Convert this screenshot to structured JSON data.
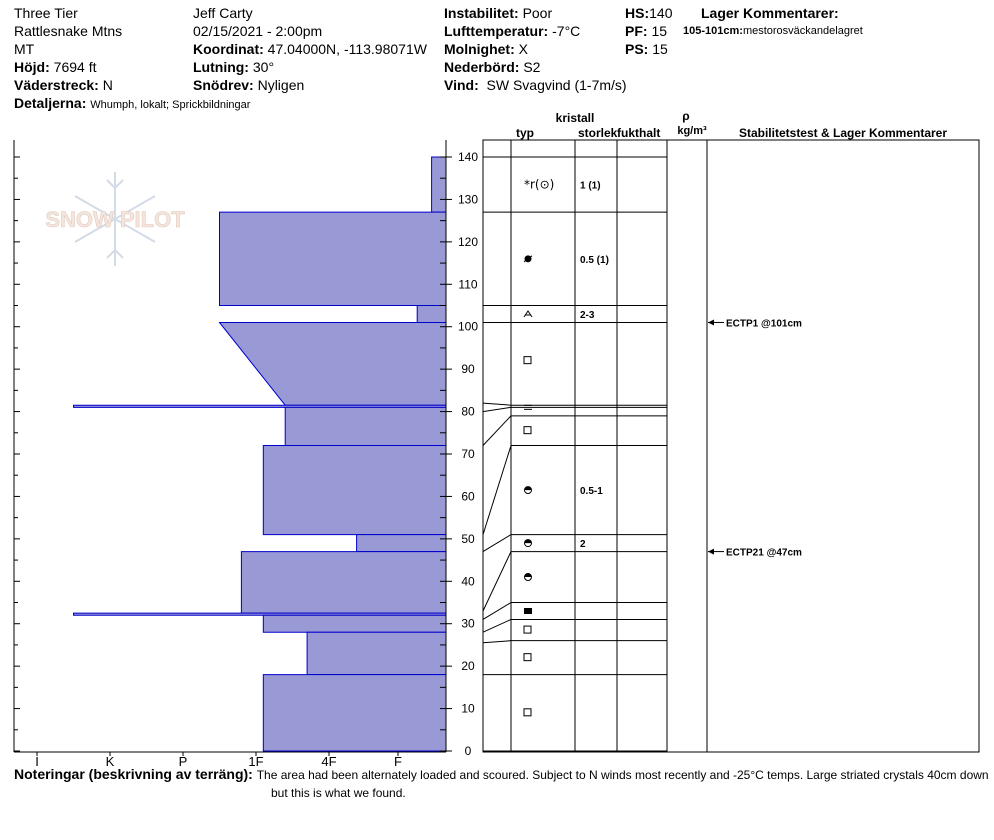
{
  "header": {
    "location_name": "Three Tier",
    "region": "Rattlesnake Mtns",
    "state": "MT",
    "elevation_label": "Höjd:",
    "elevation": "7694 ft",
    "aspect_label": "Väderstreck:",
    "aspect": "N",
    "details_label": "Detaljerna:",
    "details": "Whumph, lokalt; Sprickbildningar",
    "observer": "Jeff Carty",
    "datetime": "02/15/2021 - 2:00pm",
    "coord_label": "Koordinat:",
    "coord": "47.04000N, -113.98071W",
    "slope_label": "Lutning:",
    "slope": "30°",
    "snowdrift_label": "Snödrev:",
    "snowdrift": "Nyligen",
    "instability_label": "Instabilitet:",
    "instability": "Poor",
    "airtemp_label": "Lufttemperatur:",
    "airtemp": "-7°C",
    "cloud_label": "Molnighet:",
    "cloud": "X",
    "precip_label": "Nederbörd:",
    "precip": "S2",
    "wind_label": "Vind:",
    "wind": "SW Svagvind (1-7m/s)",
    "hs_label": "HS:",
    "hs": "140",
    "pf_label": "PF:",
    "pf": "15",
    "ps_label": "PS:",
    "ps": "15",
    "layer_comments_label": "Lager Kommentarer:",
    "layer_comment_depth": "105-101cm:",
    "layer_comment_text": "mestorosväckandelagret"
  },
  "columns": {
    "crystal": "kristall",
    "type": "typ",
    "size": "storlek",
    "moisture": "fukthalt",
    "rho": "ρ",
    "density_unit": "kg/m³",
    "stability": "Stabilitetstest & Lager Kommentarer"
  },
  "watermark": "SNOW PILOT",
  "notes_label": "Noteringar (beskrivning av terräng):",
  "notes_line1": "The area had been alternately loaded and scoured. Subject to N winds most recently and -25°C temps. Large striated crystals 40cm down",
  "notes_line2": "but this is what we found.",
  "colors": {
    "hardness_fill": "#9999d6",
    "hardness_stroke": "#0000cc"
  },
  "chart_data": {
    "type": "area",
    "title": "",
    "xlabel": "",
    "ylabel": "",
    "x_hardness_ticks": [
      "I",
      "K",
      "P",
      "1F",
      "4F",
      "F"
    ],
    "y_ticks": [
      0,
      10,
      20,
      30,
      40,
      50,
      60,
      70,
      80,
      90,
      100,
      110,
      120,
      130,
      140
    ],
    "ylim": [
      0,
      140
    ],
    "hardness_scale_note": "0 = none, 1 = F, 2 = 4F, 3 = 1F, 4 = P, 5 = K, 6 = I (values read as hardness index)",
    "hardness_profile": [
      {
        "top": 140,
        "bottom": 127,
        "hardness_top": 0.3,
        "hardness_bottom": 0.3
      },
      {
        "top": 127,
        "bottom": 105,
        "hardness_top": 3.5,
        "hardness_bottom": 3.5
      },
      {
        "top": 105,
        "bottom": 101,
        "hardness_top": 0.6,
        "hardness_bottom": 0.6
      },
      {
        "top": 101,
        "bottom": 81.5,
        "hardness_top": 3.5,
        "hardness_bottom": 2.6
      },
      {
        "top": 81.5,
        "bottom": 81,
        "hardness_top": 5.5,
        "hardness_bottom": 5.5
      },
      {
        "top": 81,
        "bottom": 72,
        "hardness_top": 2.6,
        "hardness_bottom": 2.6
      },
      {
        "top": 72,
        "bottom": 51,
        "hardness_top": 2.9,
        "hardness_bottom": 2.9
      },
      {
        "top": 51,
        "bottom": 47,
        "hardness_top": 1.6,
        "hardness_bottom": 1.6
      },
      {
        "top": 47,
        "bottom": 32.5,
        "hardness_top": 3.2,
        "hardness_bottom": 3.2
      },
      {
        "top": 32.5,
        "bottom": 32,
        "hardness_top": 5.5,
        "hardness_bottom": 5.5
      },
      {
        "top": 32,
        "bottom": 28,
        "hardness_top": 2.9,
        "hardness_bottom": 2.9
      },
      {
        "top": 28,
        "bottom": 18,
        "hardness_top": 2.3,
        "hardness_bottom": 2.3
      },
      {
        "top": 18,
        "bottom": 0,
        "hardness_top": 2.9,
        "hardness_bottom": 2.9
      }
    ],
    "layer_boundaries": [
      140,
      127,
      105,
      101,
      81.5,
      81,
      79,
      72,
      51,
      47,
      35,
      31,
      26,
      18,
      0
    ],
    "left_boundaries": [
      140,
      127,
      105,
      101,
      82,
      80,
      72,
      51,
      47,
      33,
      31,
      28,
      25.5,
      18,
      0
    ],
    "layers": [
      {
        "mid": 133.5,
        "type": "*r(⊙)",
        "size": "1 (1)"
      },
      {
        "mid": 116,
        "type": "ball-dot",
        "size": "0.5 (1)"
      },
      {
        "mid": 103,
        "type": "caret",
        "size": "2-3"
      },
      {
        "mid": 92,
        "type": "square",
        "size": ""
      },
      {
        "mid": 81,
        "type": "equals",
        "size": ""
      },
      {
        "mid": 75.5,
        "type": "square",
        "size": ""
      },
      {
        "mid": 61.5,
        "type": "ball-half",
        "size": "0.5-1"
      },
      {
        "mid": 49,
        "type": "ball-half",
        "size": "2"
      },
      {
        "mid": 41,
        "type": "ball-half",
        "size": ""
      },
      {
        "mid": 33,
        "type": "filled-square",
        "size": ""
      },
      {
        "mid": 28.5,
        "type": "square",
        "size": ""
      },
      {
        "mid": 22,
        "type": "square",
        "size": ""
      },
      {
        "mid": 9,
        "type": "square",
        "size": ""
      }
    ],
    "stability_tests": [
      {
        "depth": 101,
        "label": "ECTP1 @101cm"
      },
      {
        "depth": 47,
        "label": "ECTP21 @47cm"
      }
    ]
  }
}
